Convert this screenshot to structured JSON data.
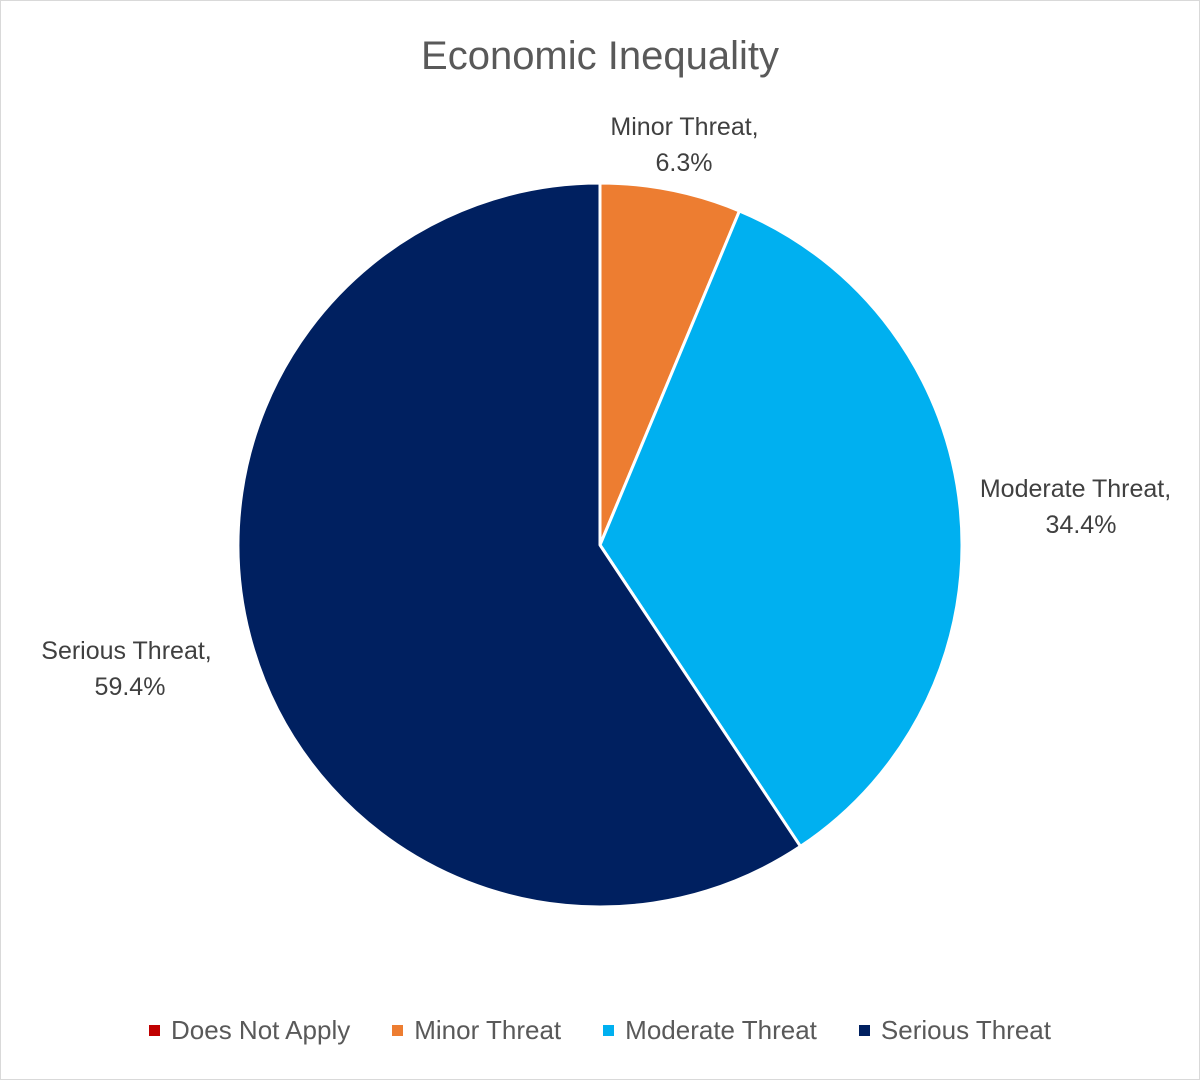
{
  "chart_data": {
    "type": "pie",
    "title": "Economic Inequality",
    "slices": [
      {
        "name": "Does Not Apply",
        "value": 0.0,
        "label": "",
        "color": "#c00000"
      },
      {
        "name": "Minor Threat",
        "value": 6.3,
        "label": "Minor Threat, 6.3%",
        "color": "#ed7d31"
      },
      {
        "name": "Moderate Threat",
        "value": 34.4,
        "label": "Moderate Threat, 34.4%",
        "color": "#00b0f0"
      },
      {
        "name": "Serious Threat",
        "value": 59.4,
        "label": "Serious Threat, 59.4%",
        "color": "#002060"
      }
    ],
    "start_angle": 0,
    "direction": "clockwise",
    "legend_position": "bottom",
    "legend": [
      "Does Not Apply",
      "Minor Threat",
      "Moderate Threat",
      "Serious Threat"
    ]
  }
}
